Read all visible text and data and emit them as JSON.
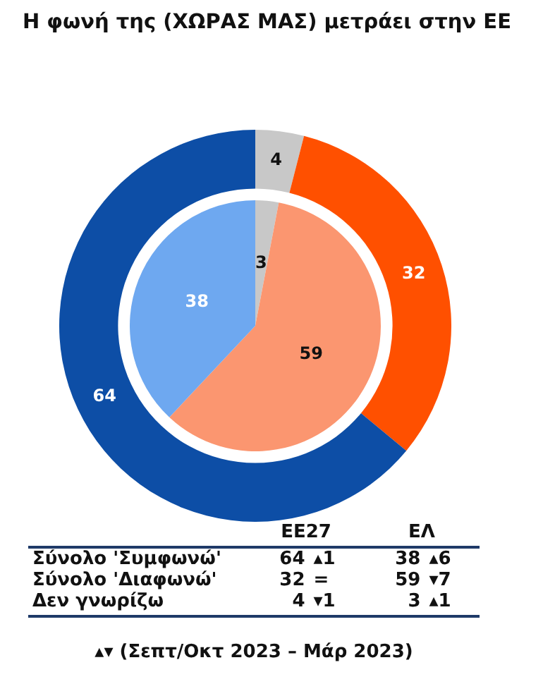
{
  "chart_data": [
    {
      "type": "donut",
      "title": "Η φωνή της (ΧΩΡΑΣ ΜΑΣ) μετράει στην ΕΕ",
      "categories": [
        null,
        null,
        null
      ],
      "series": [
        {
          "colors": [
            "#c8c8c8",
            "#ff5000",
            "#0d4ea6"
          ],
          "values": [
            4,
            32,
            64
          ]
        },
        {
          "colors": [
            "#c8c8c8",
            "#fb9670",
            "#6ea8f0"
          ],
          "values": [
            3,
            59,
            38
          ]
        }
      ],
      "data_labels": true
    },
    {
      "type": "other",
      "categories": [
        "Σύνολο 'Συμφωνώ'",
        "Σύνολο 'Διαφωνώ'",
        "Δεν γνωρίζω"
      ],
      "series": [
        {
          "name": "ΕΕ27",
          "values": [
            64,
            32,
            4
          ]
        },
        {
          "name": "ΕΛ",
          "values": [
            38,
            59,
            3
          ]
        }
      ],
      "data_labels": true,
      "annotations": [
        "▴1",
        "=",
        "▾1",
        "▴6",
        "▾7",
        "▴1",
        "▴▾ (Σεπτ/Οκτ 2023 – Μάρ 2023)"
      ]
    }
  ]
}
